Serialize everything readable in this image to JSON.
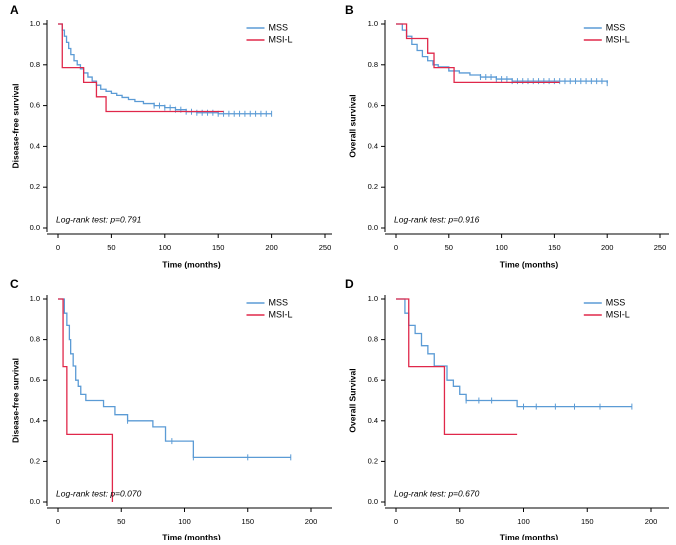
{
  "colors": {
    "mss": "#5b9bd5",
    "msil": "#e0284a",
    "axis": "#000000",
    "text": "#000000"
  },
  "chart_data": [
    {
      "panel": "A",
      "type": "line",
      "title": "",
      "xlabel": "Time (months)",
      "ylabel": "Disease-free survival",
      "xlim": [
        0,
        250
      ],
      "ylim": [
        0,
        1.0
      ],
      "xticks": [
        "0",
        "50",
        "100",
        "150",
        "200",
        "250"
      ],
      "yticks": [
        "0.0",
        "0.2",
        "0.4",
        "0.6",
        "0.8",
        "1.0"
      ],
      "legend": [
        "MSS",
        "MSI-L"
      ],
      "legend_position": "top-right",
      "annotation": "Log-rank test: p=0.791",
      "series": [
        {
          "name": "MSS",
          "color_key": "mss",
          "x": [
            0,
            4,
            6,
            8,
            10,
            12,
            15,
            18,
            21,
            24,
            28,
            32,
            36,
            40,
            45,
            50,
            55,
            60,
            66,
            72,
            80,
            90,
            100,
            110,
            120,
            130,
            150,
            200
          ],
          "y": [
            1.0,
            0.97,
            0.94,
            0.91,
            0.88,
            0.85,
            0.82,
            0.8,
            0.78,
            0.76,
            0.74,
            0.72,
            0.7,
            0.68,
            0.67,
            0.66,
            0.65,
            0.64,
            0.63,
            0.62,
            0.61,
            0.6,
            0.59,
            0.58,
            0.57,
            0.565,
            0.56,
            0.56
          ],
          "censor_x": [
            90,
            95,
            100,
            105,
            110,
            115,
            120,
            125,
            130,
            135,
            140,
            145,
            150,
            155,
            160,
            165,
            170,
            175,
            180,
            185,
            190,
            195,
            200
          ]
        },
        {
          "name": "MSI-L",
          "color_key": "msil",
          "x": [
            0,
            4,
            24,
            36,
            45,
            155
          ],
          "y": [
            1.0,
            0.786,
            0.714,
            0.643,
            0.571,
            0.571
          ],
          "censor_x": []
        }
      ]
    },
    {
      "panel": "B",
      "type": "line",
      "title": "",
      "xlabel": "Time (months)",
      "ylabel": "Overall survival",
      "xlim": [
        0,
        250
      ],
      "ylim": [
        0,
        1.0
      ],
      "xticks": [
        "0",
        "50",
        "100",
        "150",
        "200",
        "250"
      ],
      "yticks": [
        "0.0",
        "0.2",
        "0.4",
        "0.6",
        "0.8",
        "1.0"
      ],
      "legend": [
        "MSS",
        "MSI-L"
      ],
      "legend_position": "top-right",
      "annotation": "Log-rank test: p=0.916",
      "series": [
        {
          "name": "MSS",
          "color_key": "mss",
          "x": [
            0,
            6,
            10,
            15,
            20,
            25,
            30,
            35,
            40,
            50,
            60,
            70,
            80,
            95,
            110,
            200
          ],
          "y": [
            1.0,
            0.97,
            0.94,
            0.9,
            0.87,
            0.84,
            0.82,
            0.8,
            0.79,
            0.77,
            0.76,
            0.75,
            0.74,
            0.73,
            0.72,
            0.71
          ],
          "censor_x": [
            80,
            85,
            90,
            95,
            100,
            105,
            110,
            115,
            120,
            125,
            130,
            135,
            140,
            145,
            150,
            155,
            160,
            165,
            170,
            175,
            180,
            185,
            190,
            195,
            200
          ]
        },
        {
          "name": "MSI-L",
          "color_key": "msil",
          "x": [
            0,
            10,
            30,
            36,
            55,
            155
          ],
          "y": [
            1.0,
            0.929,
            0.857,
            0.786,
            0.714,
            0.714
          ],
          "censor_x": []
        }
      ]
    },
    {
      "panel": "C",
      "type": "line",
      "title": "",
      "xlabel": "Time (months)",
      "ylabel": "Disease-free survival",
      "xlim": [
        0,
        200
      ],
      "ylim": [
        0,
        1.0
      ],
      "xticks": [
        "0",
        "50",
        "100",
        "150",
        "200"
      ],
      "yticks": [
        "0.0",
        "0.2",
        "0.4",
        "0.6",
        "0.8",
        "1.0"
      ],
      "legend": [
        "MSS",
        "MSI-L"
      ],
      "legend_position": "top-right",
      "annotation": "Log-rank test: p=0.070",
      "series": [
        {
          "name": "MSS",
          "color_key": "mss",
          "x": [
            0,
            5,
            7,
            9,
            10,
            12,
            14,
            16,
            18,
            22,
            36,
            45,
            55,
            75,
            85,
            107,
            184
          ],
          "y": [
            1.0,
            0.93,
            0.87,
            0.8,
            0.73,
            0.67,
            0.6,
            0.57,
            0.53,
            0.5,
            0.47,
            0.43,
            0.4,
            0.37,
            0.3,
            0.22,
            0.22
          ],
          "censor_x": [
            55,
            90,
            107,
            150,
            184
          ]
        },
        {
          "name": "MSI-L",
          "color_key": "msil",
          "x": [
            0,
            4,
            7,
            43,
            43
          ],
          "y": [
            1.0,
            0.667,
            0.333,
            0.333,
            0.0
          ],
          "censor_x": []
        }
      ]
    },
    {
      "panel": "D",
      "type": "line",
      "title": "",
      "xlabel": "Time (months)",
      "ylabel": "Overall Survival",
      "xlim": [
        0,
        200
      ],
      "ylim": [
        0,
        1.0
      ],
      "xticks": [
        "0",
        "50",
        "100",
        "150",
        "200"
      ],
      "yticks": [
        "0.0",
        "0.2",
        "0.4",
        "0.6",
        "0.8",
        "1.0"
      ],
      "legend": [
        "MSS",
        "MSI-L"
      ],
      "legend_position": "top-right",
      "annotation": "Log-rank test: p=0.670",
      "series": [
        {
          "name": "MSS",
          "color_key": "mss",
          "x": [
            0,
            7,
            10,
            15,
            20,
            25,
            30,
            40,
            45,
            50,
            55,
            95,
            185
          ],
          "y": [
            1.0,
            0.93,
            0.87,
            0.83,
            0.77,
            0.73,
            0.67,
            0.6,
            0.57,
            0.53,
            0.5,
            0.47,
            0.47
          ],
          "censor_x": [
            55,
            65,
            75,
            100,
            110,
            125,
            140,
            160,
            185
          ]
        },
        {
          "name": "MSI-L",
          "color_key": "msil",
          "x": [
            0,
            10,
            38,
            95
          ],
          "y": [
            1.0,
            0.667,
            0.333,
            0.333
          ],
          "censor_x": []
        }
      ]
    }
  ]
}
